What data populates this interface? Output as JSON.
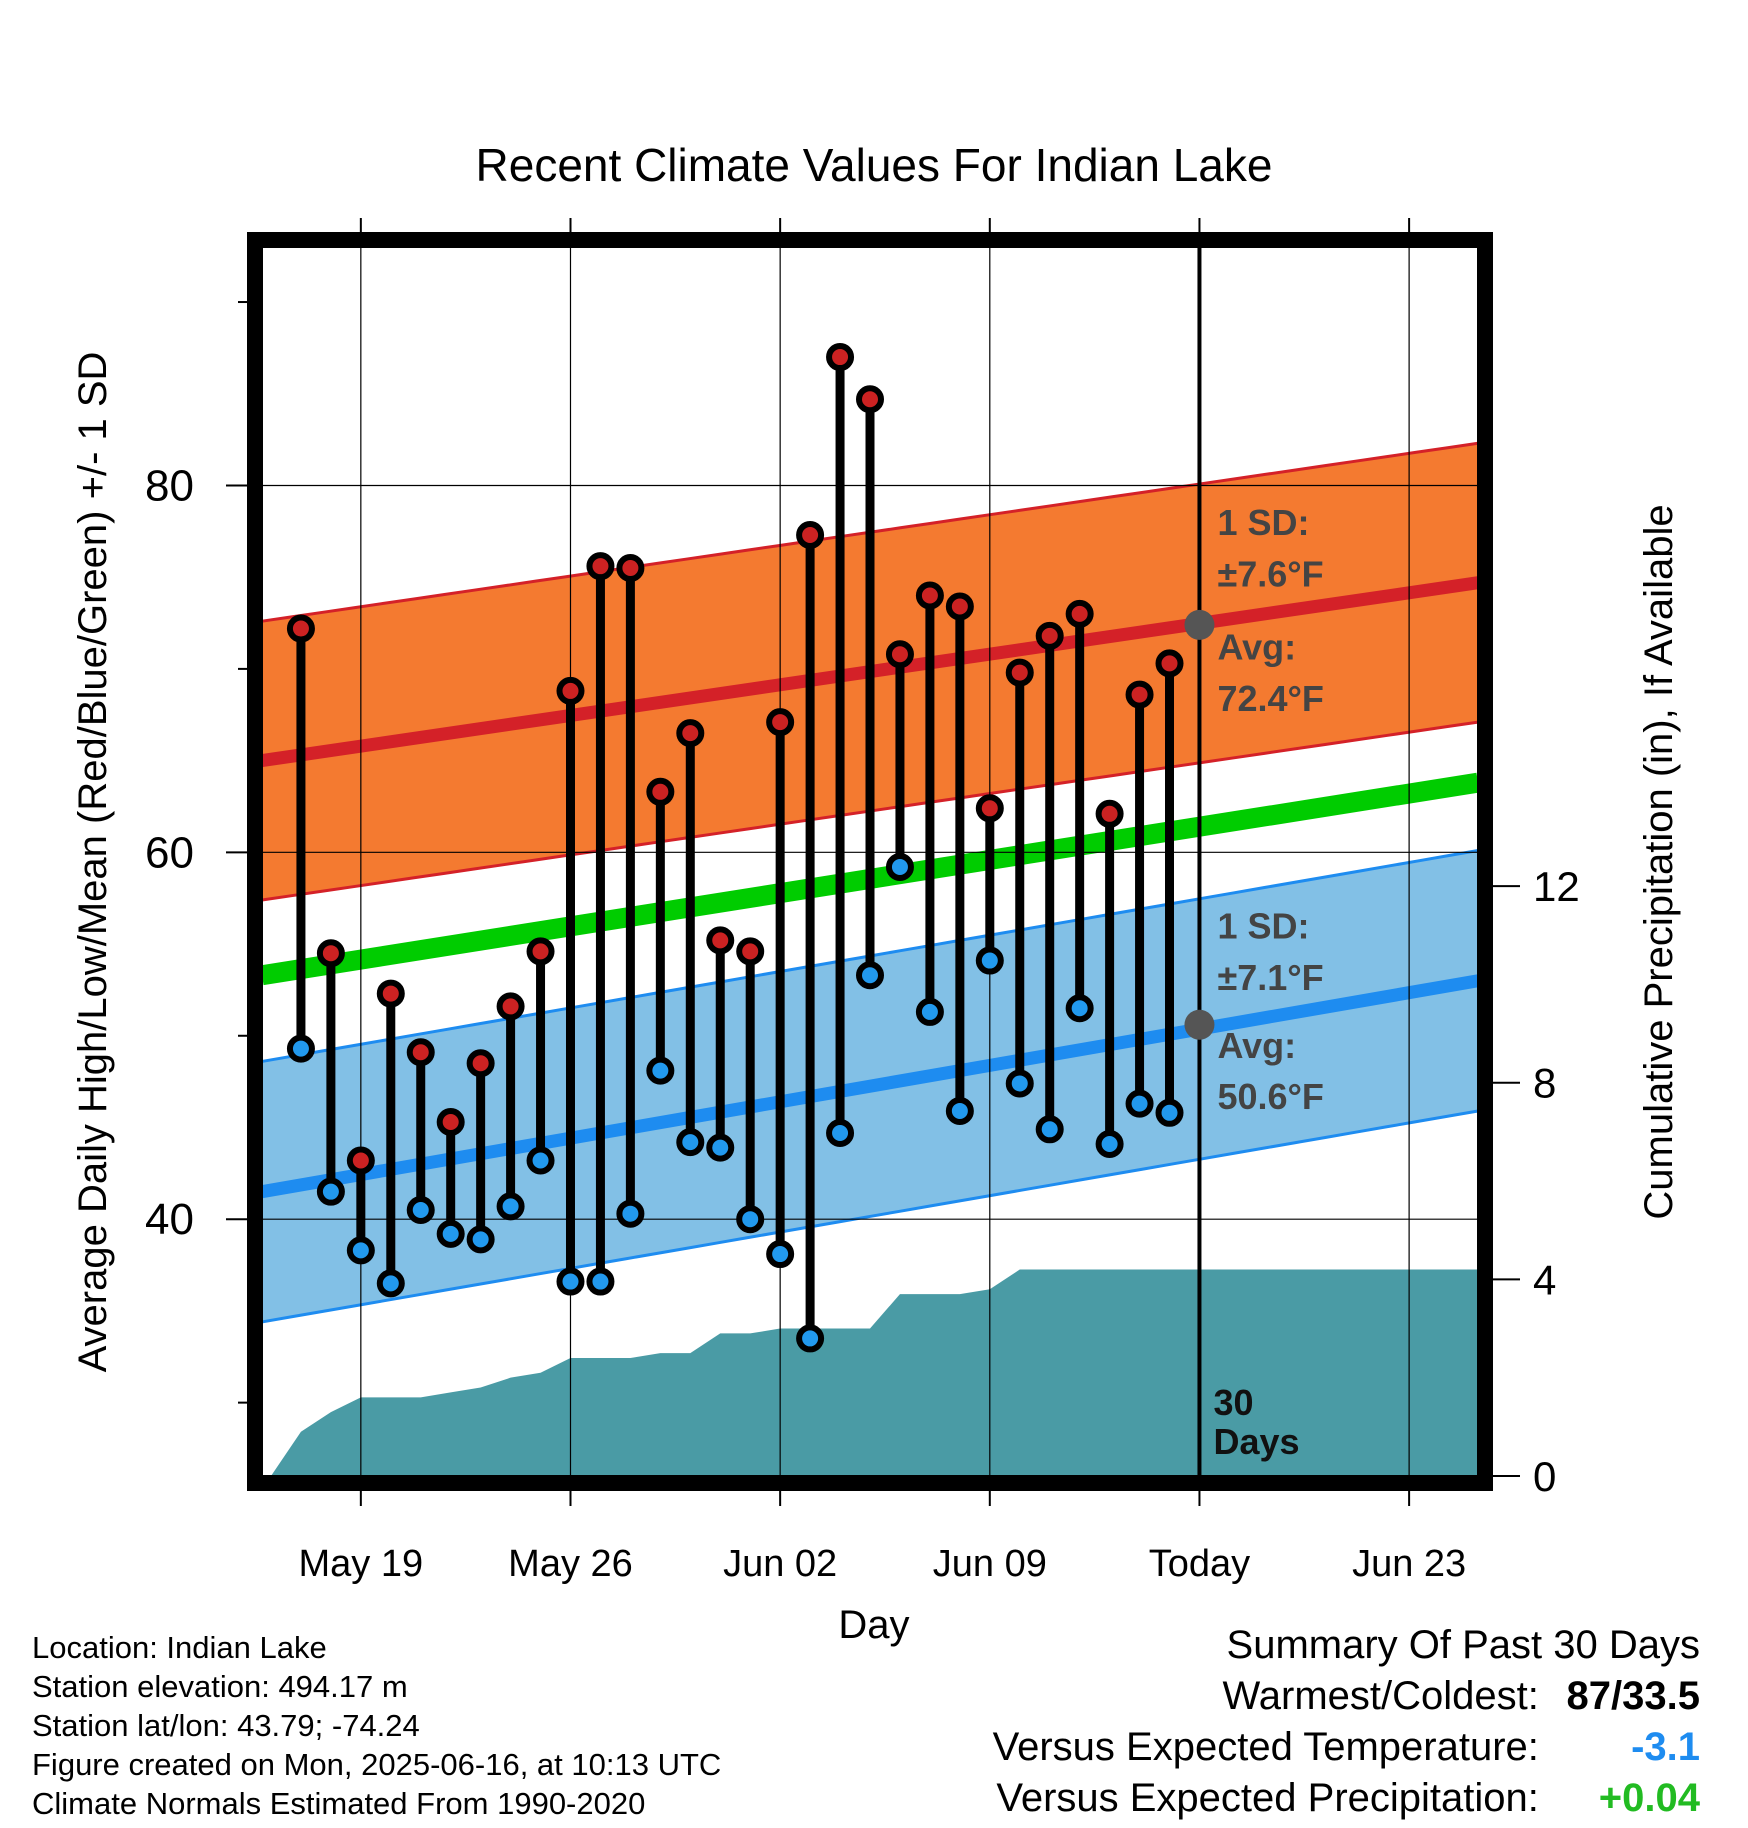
{
  "chart_data": {
    "type": "line",
    "title": "Recent Climate Values For Indian Lake",
    "xlabel": "Day",
    "ylabel_left": "Average Daily High/Low/Mean (Red/Blue/Green) +/- 1 SD",
    "ylabel_right": "Cumulative Precipitation (in), If Available",
    "x_tick_labels": [
      "May 19",
      "May 26",
      "Jun 02",
      "Jun 09",
      "Today",
      "Jun 23"
    ],
    "x_tick_days": [
      3,
      10,
      17,
      24,
      31,
      38
    ],
    "x_range_days": [
      -0.3,
      40.3
    ],
    "y_left_ticks": [
      40,
      60,
      80
    ],
    "y_left_range": [
      26,
      93
    ],
    "y_right_ticks": [
      0,
      4,
      8,
      12
    ],
    "y_right_range": [
      0,
      25
    ],
    "grid": true,
    "days": [
      1,
      2,
      3,
      4,
      5,
      6,
      7,
      8,
      9,
      10,
      11,
      12,
      13,
      14,
      15,
      16,
      17,
      18,
      19,
      20,
      21,
      22,
      23,
      24,
      25,
      26,
      27,
      28,
      29,
      30
    ],
    "highs": [
      72.2,
      54.5,
      43.2,
      52.3,
      49.1,
      45.3,
      48.5,
      51.6,
      54.6,
      68.8,
      75.6,
      75.5,
      63.3,
      66.5,
      55.2,
      54.6,
      67.1,
      77.3,
      87.0,
      84.7,
      70.8,
      74.0,
      73.4,
      62.4,
      69.8,
      71.8,
      73.0,
      62.1,
      68.6,
      70.3
    ],
    "lows": [
      49.3,
      41.5,
      38.3,
      36.5,
      40.5,
      39.2,
      38.9,
      40.7,
      43.2,
      36.6,
      36.6,
      40.3,
      48.1,
      44.2,
      43.9,
      40.0,
      38.1,
      33.5,
      44.7,
      53.3,
      59.2,
      51.3,
      45.9,
      54.1,
      47.4,
      44.9,
      51.5,
      44.1,
      46.3,
      45.8
    ],
    "normal_high": {
      "start": 65.0,
      "end": 74.7
    },
    "normal_low": {
      "start": 41.5,
      "end": 53.0
    },
    "normal_mean": {
      "start": 53.3,
      "end": 63.8
    },
    "sd_high": 7.6,
    "sd_low": 7.1,
    "precip_cumulative": [
      0.0,
      0.9,
      1.3,
      1.6,
      1.6,
      1.6,
      1.7,
      1.8,
      2.0,
      2.1,
      2.4,
      2.4,
      2.4,
      2.5,
      2.5,
      2.9,
      2.9,
      3.0,
      3.0,
      3.0,
      3.0,
      3.7,
      3.7,
      3.7,
      3.8,
      4.2,
      4.2,
      4.2,
      4.2,
      4.2,
      4.2,
      4.2,
      4.2,
      4.2,
      4.2,
      4.2,
      4.2,
      4.2,
      4.2,
      4.2,
      4.2
    ],
    "colors": {
      "high_band": "#f47a30",
      "high_line": "#d42128",
      "low_band": "#82c0e6",
      "low_line": "#1e8cf0",
      "mean_line": "#00cc00",
      "precip": "#4a9ba5",
      "high_dot": "#cc2222",
      "low_dot": "#2299ee"
    },
    "annotations": {
      "high_sd_title": "1 SD:",
      "high_sd_value": "±7.6°F",
      "high_avg_title": "Avg:",
      "high_avg_value": "72.4°F",
      "low_sd_title": "1 SD:",
      "low_sd_value": "±7.1°F",
      "low_avg_title": "Avg:",
      "low_avg_value": "50.6°F",
      "high_avg_marker": 72.4,
      "low_avg_marker": 50.6,
      "days_number": "30",
      "days_word": "Days"
    }
  },
  "footer": {
    "location": "Location: Indian Lake",
    "elevation": "Station elevation: 494.17 m",
    "latlon": "Station lat/lon: 43.79; -74.24",
    "created": "Figure created on Mon, 2025-06-16, at 10:13 UTC",
    "normals": "Climate Normals Estimated From 1990-2020"
  },
  "summary": {
    "title": "Summary Of Past 30 Days",
    "warm_cold_label": "Warmest/Coldest:",
    "warm_cold_value": "87/33.5",
    "temp_label": "Versus Expected Temperature:",
    "temp_value": "-3.1",
    "temp_color": "#1e8cf0",
    "precip_label": "Versus Expected Precipitation:",
    "precip_value": "+0.04",
    "precip_color": "#22bb22"
  }
}
